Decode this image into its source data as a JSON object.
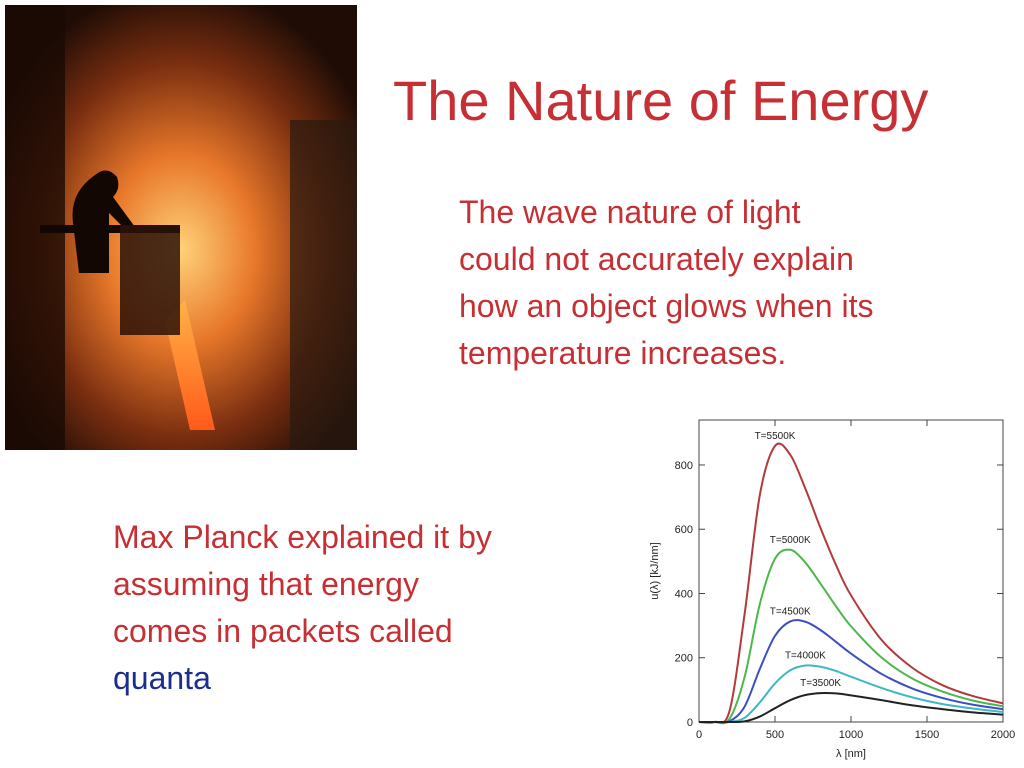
{
  "title": "The Nature of Energy",
  "paragraph_1": {
    "lines": [
      "The wave nature of light",
      "could not accurately explain",
      "how an object glows when its",
      "temperature increases."
    ]
  },
  "paragraph_2": {
    "lines": [
      "Max Planck explained it by",
      "assuming that energy",
      "comes in packets called"
    ],
    "highlight": "quanta"
  },
  "chart_data": {
    "type": "line",
    "x_label": "λ [nm]",
    "y_label": "u(λ) [kJ/nm]",
    "x": [
      0,
      100,
      200,
      300,
      400,
      500,
      600,
      700,
      800,
      900,
      1000,
      1200,
      1400,
      1600,
      1800,
      2000
    ],
    "series": [
      {
        "name": "T=5500K",
        "color": "#b23a3a",
        "values": [
          0,
          0,
          33,
          336,
          706,
          859,
          832,
          726,
          603,
          490,
          394,
          256,
          170,
          115,
          81,
          58
        ]
      },
      {
        "name": "T=5000K",
        "color": "#4cb84c",
        "values": [
          0,
          0,
          9,
          140,
          367,
          508,
          536,
          496,
          430,
          361,
          298,
          201,
          136,
          95,
          67,
          49
        ]
      },
      {
        "name": "T=4500K",
        "color": "#3c4fbf",
        "values": [
          0,
          0,
          2,
          48,
          165,
          268,
          313,
          312,
          286,
          250,
          213,
          150,
          105,
          75,
          54,
          40
        ]
      },
      {
        "name": "T=4000K",
        "color": "#3fb8c4",
        "values": [
          0,
          0,
          0,
          13,
          61,
          120,
          161,
          176,
          172,
          159,
          141,
          106,
          77,
          56,
          42,
          31
        ]
      },
      {
        "name": "T=3500K",
        "color": "#222222",
        "values": [
          0,
          0,
          0,
          2,
          17,
          43,
          68,
          84,
          90,
          89,
          83,
          68,
          52,
          40,
          30,
          23
        ]
      }
    ],
    "xlim": [
      0,
      2000
    ],
    "ylim": [
      0,
      940
    ],
    "xticks": [
      0,
      500,
      1000,
      1500,
      2000
    ],
    "yticks": [
      0,
      200,
      400,
      600,
      800
    ]
  }
}
